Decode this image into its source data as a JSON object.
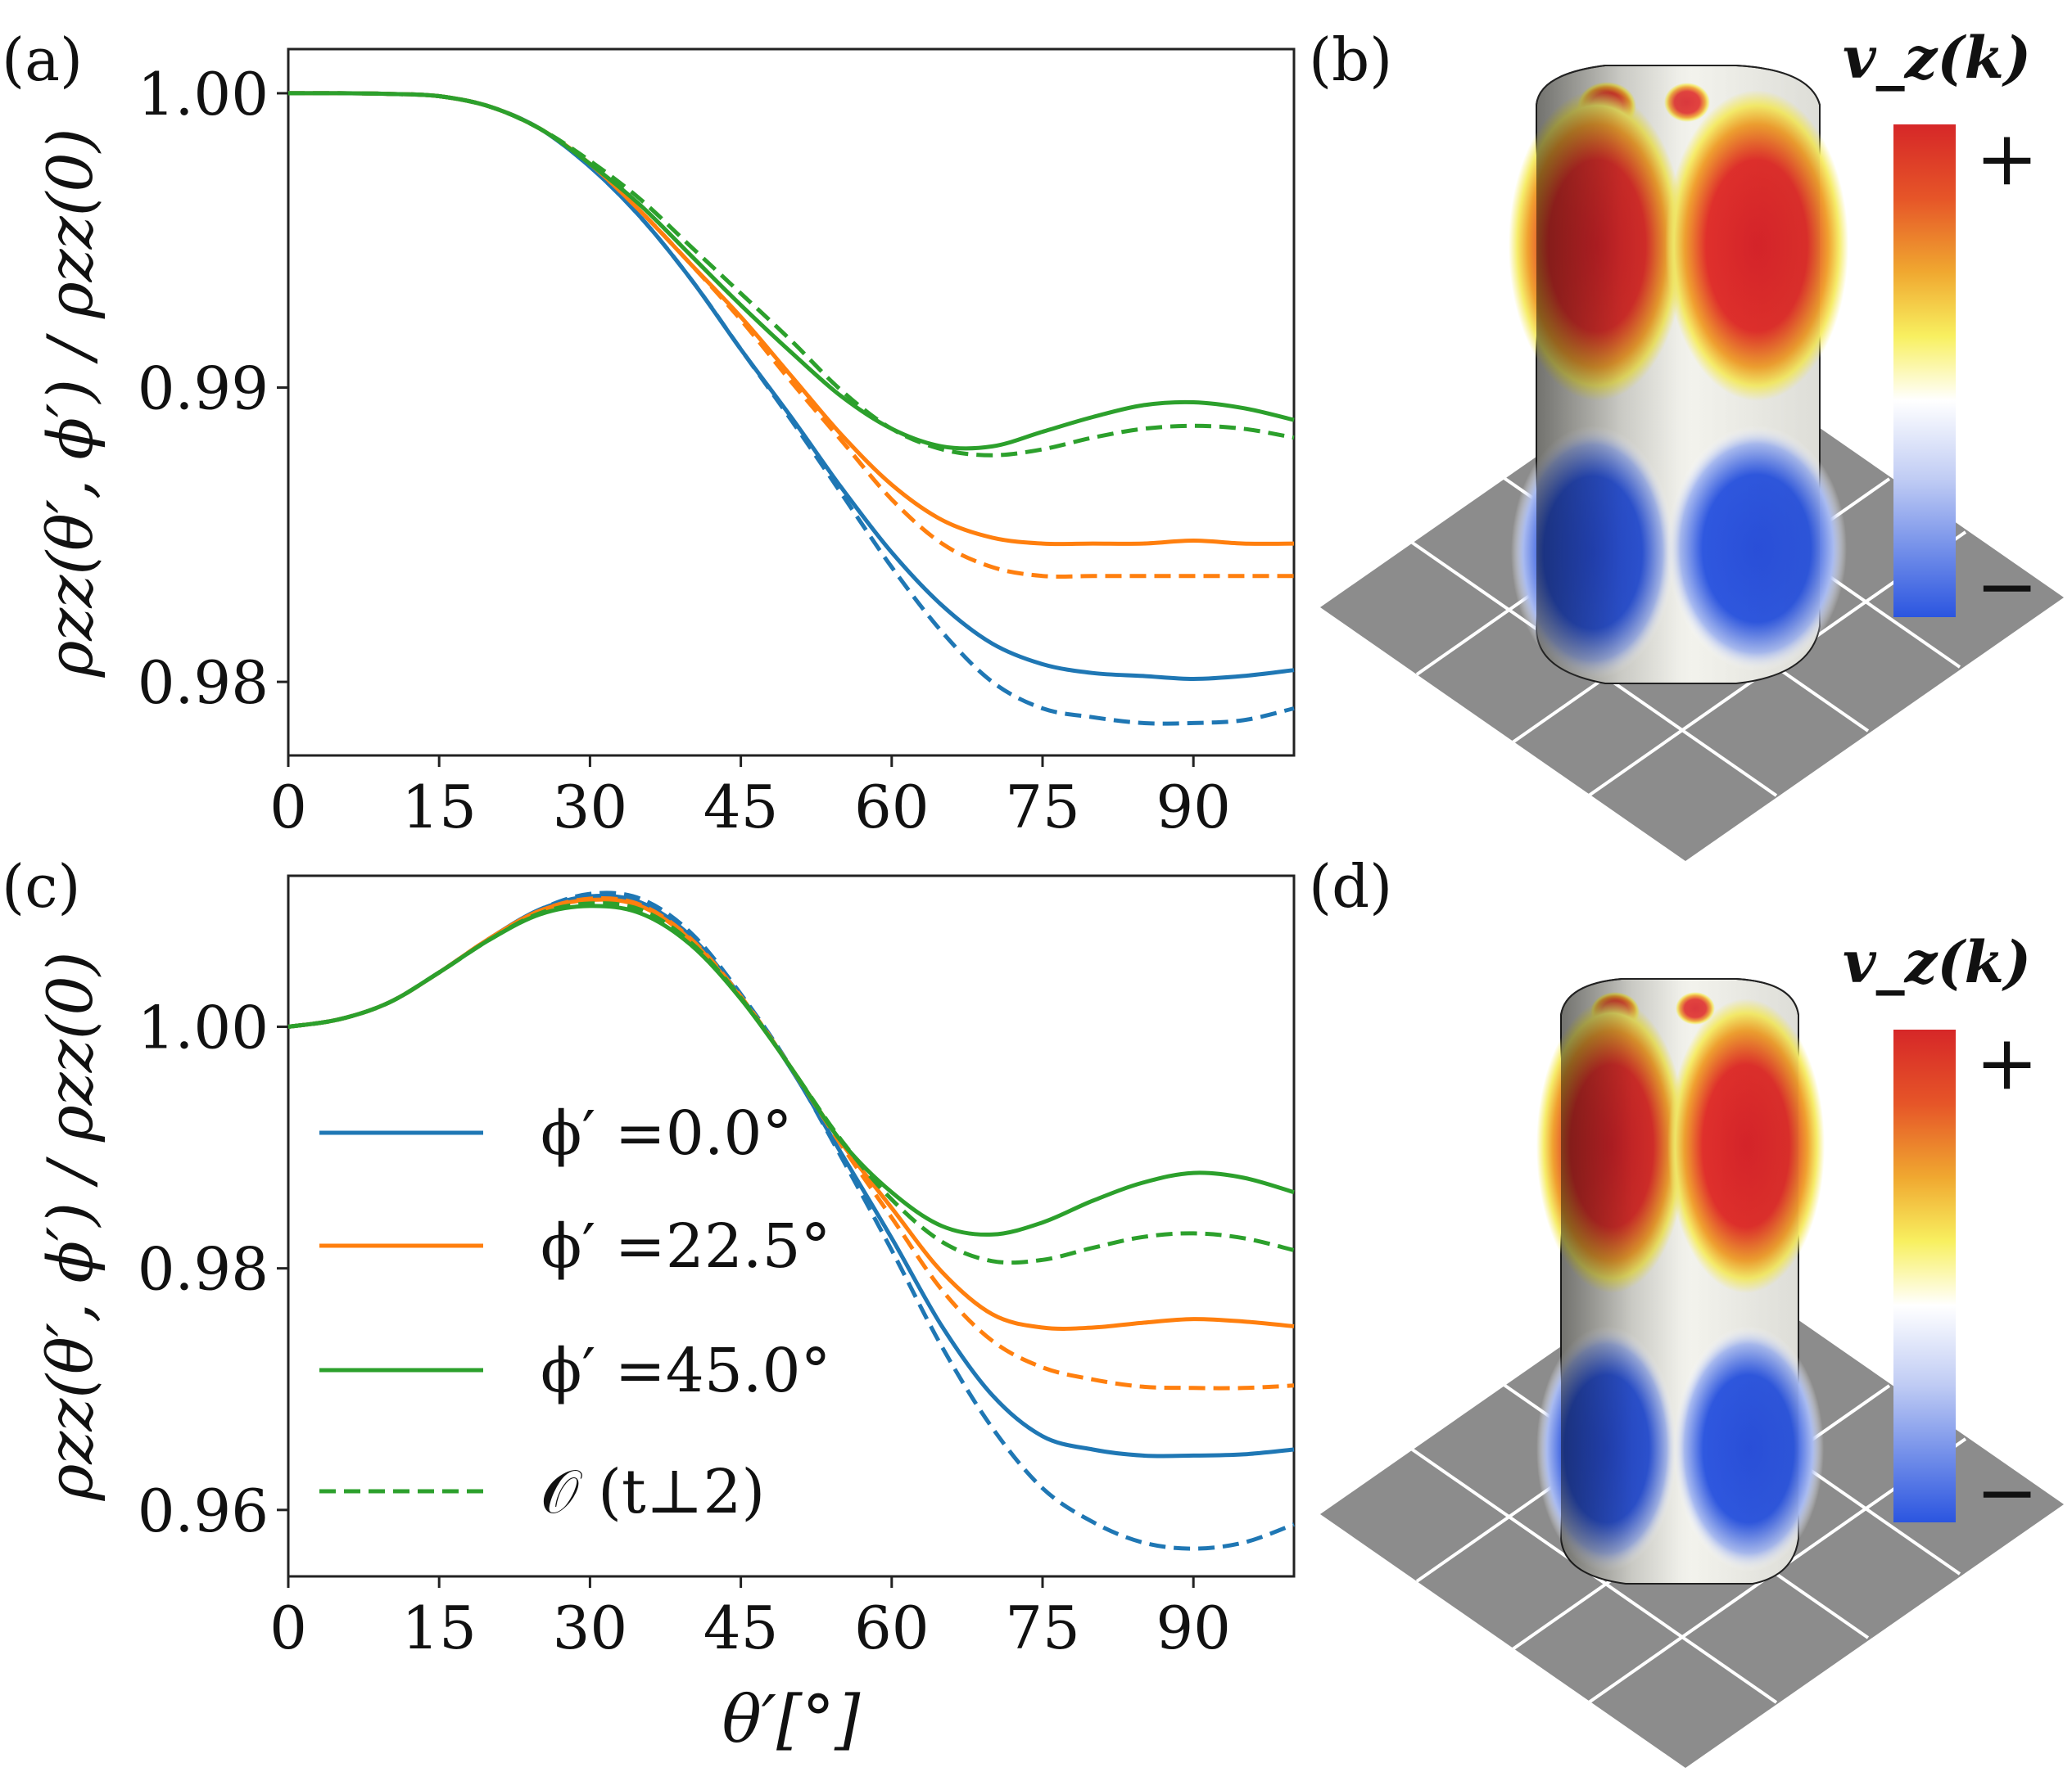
{
  "figure": {
    "panel_labels": [
      "(a)",
      "(b)",
      "(c)",
      "(d)"
    ],
    "colorbar": {
      "label": "v_z(k)",
      "plus": "+",
      "minus": "−"
    },
    "colors": {
      "blue": "#1f77b4",
      "orange": "#ff7f0e",
      "green": "#2ca02c",
      "grid_floor": "#8c8c8c",
      "red": "#d62728",
      "cold": "#2b55e0"
    }
  },
  "chart_data": [
    {
      "id": "a",
      "type": "line",
      "title": "",
      "xlabel": "θ′[°]",
      "ylabel": "ρzz(θ′, ϕ′) / ρzz(0)",
      "xlim": [
        0,
        100
      ],
      "ylim": [
        0.9775,
        1.0015
      ],
      "xticks": [
        0,
        15,
        30,
        45,
        60,
        75,
        90
      ],
      "yticks": [
        0.98,
        0.99,
        1.0
      ],
      "ytick_labels": [
        "0.98",
        "0.99",
        "1.00"
      ],
      "x": [
        0,
        5,
        10,
        15,
        20,
        25,
        30,
        35,
        40,
        45,
        50,
        55,
        60,
        65,
        70,
        75,
        80,
        85,
        90,
        95,
        100
      ],
      "series": [
        {
          "name": "ϕ′ =0.0°",
          "color": "blue",
          "dash": false,
          "values": [
            1.0,
            1.0,
            0.99998,
            0.9999,
            0.99955,
            0.9988,
            0.9975,
            0.9958,
            0.9937,
            0.9913,
            0.989,
            0.9866,
            0.9844,
            0.9826,
            0.9813,
            0.9806,
            0.9803,
            0.9802,
            0.9801,
            0.9802,
            0.9804
          ]
        },
        {
          "name": "O(t⊥²) blue",
          "color": "blue",
          "dash": true,
          "values": [
            1.0,
            1.0,
            0.99998,
            0.9999,
            0.99955,
            0.9988,
            0.9975,
            0.9958,
            0.9937,
            0.9913,
            0.9889,
            0.9864,
            0.9839,
            0.9817,
            0.98,
            0.9791,
            0.9788,
            0.9786,
            0.9786,
            0.9787,
            0.9791
          ]
        },
        {
          "name": "ϕ′ =22.5°",
          "color": "orange",
          "dash": false,
          "values": [
            1.0,
            1.0,
            0.99998,
            0.9999,
            0.99955,
            0.9988,
            0.9976,
            0.996,
            0.9942,
            0.9924,
            0.9904,
            0.9884,
            0.9867,
            0.9855,
            0.9849,
            0.9847,
            0.9847,
            0.9847,
            0.9848,
            0.9847,
            0.9847
          ]
        },
        {
          "name": "O(t⊥²) orange",
          "color": "orange",
          "dash": true,
          "values": [
            1.0,
            1.0,
            0.99998,
            0.9999,
            0.99955,
            0.9988,
            0.9976,
            0.996,
            0.9942,
            0.9923,
            0.9902,
            0.9882,
            0.9862,
            0.9847,
            0.9839,
            0.9836,
            0.9836,
            0.9836,
            0.9836,
            0.9836,
            0.9836
          ]
        },
        {
          "name": "ϕ′ =45.0°",
          "color": "green",
          "dash": false,
          "values": [
            1.0,
            1.0,
            0.99998,
            0.9999,
            0.99955,
            0.9988,
            0.9976,
            0.9962,
            0.9945,
            0.9928,
            0.9912,
            0.9897,
            0.9886,
            0.988,
            0.988,
            0.9885,
            0.989,
            0.9894,
            0.9895,
            0.9893,
            0.9889
          ]
        },
        {
          "name": "O(t⊥²) green",
          "color": "green",
          "dash": true,
          "values": [
            1.0,
            1.0,
            0.99998,
            0.9999,
            0.99955,
            0.9988,
            0.9977,
            0.9964,
            0.9948,
            0.9932,
            0.9916,
            0.9899,
            0.9886,
            0.9879,
            0.9877,
            0.9879,
            0.9883,
            0.9886,
            0.9887,
            0.9886,
            0.9883
          ]
        }
      ]
    },
    {
      "id": "c",
      "type": "line",
      "title": "",
      "xlabel": "θ′[°]",
      "ylabel": "ρzz(θ′, ϕ′) / ρzz(0)",
      "xlim": [
        0,
        100
      ],
      "ylim": [
        0.9545,
        1.0125
      ],
      "xticks": [
        0,
        15,
        30,
        45,
        60,
        75,
        90
      ],
      "yticks": [
        0.96,
        0.98,
        1.0
      ],
      "ytick_labels": [
        "0.96",
        "0.98",
        "1.00"
      ],
      "x": [
        0,
        5,
        10,
        15,
        20,
        25,
        30,
        35,
        40,
        45,
        50,
        55,
        60,
        65,
        70,
        75,
        80,
        85,
        90,
        95,
        100
      ],
      "legend": {
        "position": "lower-left",
        "entries": [
          {
            "label": "ϕ′ =0.0°",
            "color": "blue",
            "dash": false
          },
          {
            "label": "ϕ′ =22.5°",
            "color": "orange",
            "dash": false
          },
          {
            "label": "ϕ′ =45.0°",
            "color": "green",
            "dash": false
          },
          {
            "label": "𝒪 (t⊥2)",
            "color": "green",
            "dash": true
          }
        ]
      },
      "series": [
        {
          "name": "ϕ′ =0.0°",
          "color": "blue",
          "dash": false,
          "values": [
            1.0,
            1.0006,
            1.002,
            1.0045,
            1.0073,
            1.0097,
            1.0108,
            1.0103,
            1.0075,
            1.0025,
            0.9965,
            0.9895,
            0.9825,
            0.9752,
            0.9695,
            0.9661,
            0.965,
            0.9645,
            0.9645,
            0.9646,
            0.965
          ]
        },
        {
          "name": "O(t⊥²) blue",
          "color": "blue",
          "dash": true,
          "values": [
            1.0,
            1.0006,
            1.002,
            1.0045,
            1.0073,
            1.0097,
            1.011,
            1.0106,
            1.0078,
            1.0027,
            0.9966,
            0.9892,
            0.9815,
            0.9735,
            0.9668,
            0.9618,
            0.959,
            0.9573,
            0.9568,
            0.9573,
            0.9588
          ]
        },
        {
          "name": "ϕ′ =22.5°",
          "color": "orange",
          "dash": false,
          "values": [
            1.0,
            1.0006,
            1.002,
            1.0045,
            1.0073,
            1.0096,
            1.0105,
            1.01,
            1.0072,
            1.0024,
            0.9966,
            0.9904,
            0.985,
            0.9797,
            0.9762,
            0.9751,
            0.9751,
            0.9755,
            0.9758,
            0.9756,
            0.9752
          ]
        },
        {
          "name": "O(t⊥²) orange",
          "color": "orange",
          "dash": true,
          "values": [
            1.0,
            1.0006,
            1.002,
            1.0045,
            1.0073,
            1.0096,
            1.0106,
            1.0101,
            1.0073,
            1.0025,
            0.9966,
            0.9902,
            0.9842,
            0.9782,
            0.974,
            0.9718,
            0.9708,
            0.9702,
            0.9701,
            0.9701,
            0.9703
          ]
        },
        {
          "name": "ϕ′ =45.0°",
          "color": "green",
          "dash": false,
          "values": [
            1.0,
            1.0006,
            1.002,
            1.0045,
            1.0072,
            1.0093,
            1.01,
            1.0094,
            1.0068,
            1.0023,
            0.9966,
            0.9905,
            0.9863,
            0.9835,
            0.9828,
            0.9838,
            0.9856,
            0.9871,
            0.9879,
            0.9875,
            0.9863
          ]
        },
        {
          "name": "O(t⊥²) green",
          "color": "green",
          "dash": true,
          "values": [
            1.0,
            1.0006,
            1.002,
            1.0045,
            1.0072,
            1.0094,
            1.0102,
            1.0097,
            1.007,
            1.0024,
            0.9966,
            0.9906,
            0.9857,
            0.9822,
            0.9806,
            0.9807,
            0.9817,
            0.9826,
            0.9829,
            0.9825,
            0.9815
          ]
        }
      ]
    }
  ]
}
